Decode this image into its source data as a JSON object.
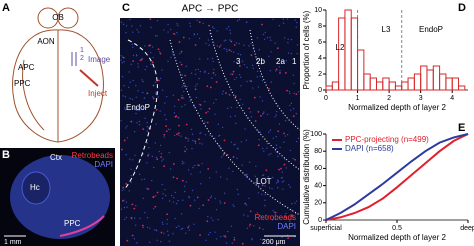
{
  "figure": {
    "panel_a": {
      "letter": "A",
      "labels": [
        "OB",
        "AON",
        "APC",
        "PPC",
        "Image",
        "Inject",
        "1",
        "2"
      ]
    },
    "panel_b": {
      "letter": "B",
      "labels": [
        "Ctx",
        "Hc",
        "PPC",
        "Retrobeads",
        "DAPI",
        "1 mm"
      ]
    },
    "panel_c": {
      "letter": "C",
      "title": "APC → PPC",
      "labels": [
        "3",
        "2b",
        "2a",
        "1",
        "EndoP",
        "LOT",
        "Retrobeads",
        "DAPI",
        "200 μm"
      ]
    },
    "panel_d": {
      "letter": "D"
    },
    "panel_e": {
      "letter": "E"
    }
  },
  "chart_data": [
    {
      "type": "histogram",
      "ylabel": "Proportion of cells (%)",
      "xlabel": "Normalized depth of layer 2",
      "bins": [
        0,
        0.2,
        0.4,
        0.6,
        0.8,
        1.0,
        1.2,
        1.4,
        1.6,
        1.8,
        2.0,
        2.2,
        2.4,
        2.6,
        2.8,
        3.0,
        3.2,
        3.4,
        3.6,
        3.8,
        4.0,
        4.2,
        4.4
      ],
      "counts": [
        0.5,
        1,
        9,
        10,
        9,
        5,
        2,
        1.5,
        1,
        1.5,
        1,
        0.5,
        1,
        1.5,
        2,
        3,
        2.5,
        3,
        2,
        1.5,
        1.5,
        0.5
      ],
      "color": "#d62728",
      "vlines": [
        1,
        2.4
      ],
      "annotations": [
        "L2",
        "L3",
        "EndoP"
      ],
      "xlim": [
        0,
        4.5
      ],
      "ylim": [
        0,
        10
      ],
      "xticks": [
        0,
        1,
        2,
        3,
        4
      ],
      "yticks": [
        0,
        2,
        4,
        6,
        8,
        10
      ]
    },
    {
      "type": "line",
      "ylabel": "Cumulative distribution (%)",
      "xlabel": "Normalized depth of layer 2",
      "x": [
        0,
        0.1,
        0.2,
        0.3,
        0.4,
        0.5,
        0.6,
        0.7,
        0.8,
        0.9,
        1.0
      ],
      "series": [
        {
          "name": "PPC-projecting (n=499)",
          "color": "#e0202a",
          "values": [
            0,
            3,
            8,
            15,
            25,
            38,
            52,
            66,
            80,
            92,
            100
          ]
        },
        {
          "name": "DAPI (n=658)",
          "color": "#2b3a9e",
          "values": [
            0,
            8,
            18,
            30,
            42,
            55,
            68,
            80,
            90,
            96,
            100
          ]
        }
      ],
      "legend": "upper left",
      "xlim": [
        0,
        1
      ],
      "ylim": [
        0,
        100
      ],
      "xticks": [
        {
          "value": 0,
          "label": "superficial"
        },
        0.5,
        {
          "value": 1,
          "label": "deep"
        }
      ],
      "yticks": [
        0,
        20,
        40,
        60,
        80,
        100
      ]
    }
  ]
}
